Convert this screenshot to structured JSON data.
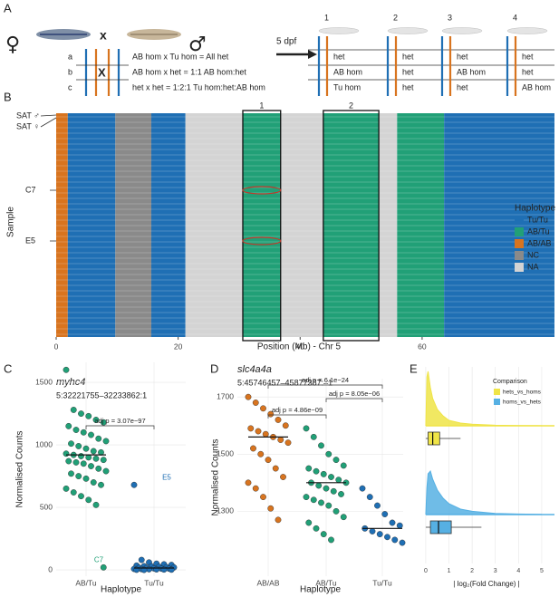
{
  "panel_a": {
    "label": "A",
    "female": "♀",
    "male": "♂",
    "cross": "x",
    "crosses": [
      {
        "row": "a",
        "text": "AB hom x Tu hom = All het"
      },
      {
        "row": "b",
        "text": "AB hom x het = 1:1 AB hom:het"
      },
      {
        "row": "c",
        "text": "het x het = 1:2:1 Tu hom:het:AB hom"
      }
    ],
    "cross_mark": "X",
    "arrow_label": "5 dpf",
    "columns": [
      "1",
      "2",
      "3",
      "4"
    ],
    "genotypes": [
      [
        "het",
        "het",
        "het",
        "het"
      ],
      [
        "AB hom",
        "het",
        "AB hom",
        "het"
      ],
      [
        "Tu hom",
        "het",
        "het",
        "AB hom"
      ]
    ]
  },
  "chart_data": [
    {
      "type": "heatmap",
      "panel_label": "B",
      "xlabel": "Position (Mb) - Chr 5",
      "ylabel": "Sample",
      "xlim": [
        0,
        81.7
      ],
      "xticks": [
        0,
        20,
        40,
        60
      ],
      "row_labels": [
        "SAT ♂",
        "SAT ♀",
        "C7",
        "E5"
      ],
      "segments": [
        {
          "start": 0,
          "end": 1.9,
          "haplotype": "AB/AB"
        },
        {
          "start": 1.9,
          "end": 9.7,
          "haplotype": "Tu/Tu"
        },
        {
          "start": 9.7,
          "end": 15.6,
          "haplotype": "NC"
        },
        {
          "start": 15.6,
          "end": 21.2,
          "haplotype": "Tu/Tu"
        },
        {
          "start": 21.2,
          "end": 30.6,
          "haplotype": "NA"
        },
        {
          "start": 30.6,
          "end": 36.8,
          "haplotype": "AB/Tu"
        },
        {
          "start": 36.8,
          "end": 43.8,
          "haplotype": "NA"
        },
        {
          "start": 43.8,
          "end": 52.9,
          "haplotype": "AB/Tu"
        },
        {
          "start": 52.9,
          "end": 55.9,
          "haplotype": "NA"
        },
        {
          "start": 55.9,
          "end": 63.6,
          "haplotype": "AB/Tu"
        },
        {
          "start": 63.6,
          "end": 81.7,
          "haplotype": "Tu/Tu"
        }
      ],
      "regions": [
        {
          "label": "1",
          "start": 30.6,
          "end": 36.8
        },
        {
          "label": "2",
          "start": 43.8,
          "end": 52.9
        }
      ],
      "legend_title": "Haplotype",
      "legend": [
        {
          "name": "Tu/Tu",
          "color": "#1f6fb4"
        },
        {
          "name": "AB/Tu",
          "color": "#21a077"
        },
        {
          "name": "AB/AB",
          "color": "#d8741f"
        },
        {
          "name": "NC",
          "color": "#8a8a8a"
        },
        {
          "name": "NA",
          "color": "#d4d4d4"
        }
      ]
    },
    {
      "type": "strip",
      "panel_label": "C",
      "title": "myhc4",
      "subtitle": "5:32221755–32233862:1",
      "xlabel": "Haplotype",
      "ylabel": "Normalised Counts",
      "categories": [
        "AB/Tu",
        "Tu/Tu"
      ],
      "colors": [
        "#21a077",
        "#1f6fb4"
      ],
      "ylim": [
        -50,
        1660
      ],
      "yticks": [
        0,
        500,
        1000,
        1500
      ],
      "values": [
        [
          1600,
          1280,
          1250,
          1230,
          1200,
          1180,
          1150,
          1120,
          1100,
          1080,
          1050,
          1030,
          1010,
          990,
          970,
          950,
          940,
          930,
          920,
          910,
          900,
          890,
          880,
          870,
          860,
          850,
          830,
          810,
          790,
          770,
          750,
          730,
          700,
          680,
          650,
          620,
          590,
          560,
          520,
          20
        ],
        [
          680,
          80,
          60,
          50,
          45,
          40,
          35,
          30,
          28,
          25,
          22,
          20,
          18,
          15,
          12,
          10,
          10,
          8,
          6,
          5,
          4,
          3,
          2,
          1,
          0
        ]
      ],
      "medians": [
        920,
        15
      ],
      "comparisons": [
        {
          "label": "adj p = 3.07e−97",
          "between": [
            "AB/Tu",
            "Tu/Tu"
          ]
        }
      ],
      "point_labels": [
        {
          "label": "C7",
          "category": "AB/Tu",
          "value": 20
        },
        {
          "label": "E5",
          "category": "Tu/Tu",
          "value": 680
        }
      ]
    },
    {
      "type": "strip",
      "panel_label": "D",
      "title": "slc4a4a",
      "subtitle": "5:45746457–45877387:–1",
      "xlabel": "Haplotype",
      "ylabel": "Normalised Counts",
      "categories": [
        "AB/AB",
        "AB/Tu",
        "Tu/Tu"
      ],
      "colors": [
        "#d8741f",
        "#21a077",
        "#1f6fb4"
      ],
      "ylim": [
        1073,
        1764
      ],
      "yticks": [
        1300,
        1500,
        1700
      ],
      "values": [
        [
          1700,
          1680,
          1660,
          1640,
          1620,
          1600,
          1590,
          1580,
          1570,
          1560,
          1550,
          1540,
          1520,
          1500,
          1480,
          1450,
          1420,
          1400,
          1380,
          1350,
          1310,
          1270
        ],
        [
          1590,
          1560,
          1530,
          1500,
          1480,
          1460,
          1450,
          1440,
          1430,
          1420,
          1410,
          1400,
          1400,
          1390,
          1380,
          1370,
          1360,
          1350,
          1340,
          1330,
          1320,
          1300,
          1280,
          1260,
          1240,
          1220,
          1200
        ],
        [
          1380,
          1350,
          1320,
          1290,
          1260,
          1250,
          1240,
          1230,
          1220,
          1210,
          1200,
          1190
        ]
      ],
      "medians": [
        1560,
        1400,
        1240
      ],
      "comparisons": [
        {
          "label": "adj p = 6.1e−24",
          "between": [
            "AB/AB",
            "Tu/Tu"
          ]
        },
        {
          "label": "adj p = 8.05e−06",
          "between": [
            "AB/Tu",
            "Tu/Tu"
          ]
        },
        {
          "label": "adj p = 4.86e−09",
          "between": [
            "AB/AB",
            "AB/Tu"
          ]
        }
      ],
      "point_labels": []
    },
    {
      "type": "raincloud",
      "panel_label": "E",
      "xlabel": "| log₂(Fold Change) |",
      "xlim": [
        -0.31,
        5.55
      ],
      "xticks": [
        0,
        1,
        2,
        3,
        4,
        5
      ],
      "legend_title": "Comparison",
      "x": [
        0,
        0.05,
        0.1,
        0.2,
        0.3,
        0.5,
        0.75,
        1,
        1.5,
        2,
        3,
        4,
        5
      ],
      "series": [
        {
          "name": "hets_vs_homs",
          "color": "#efe447",
          "density": [
            0,
            0.9,
            1,
            0.7,
            0.5,
            0.3,
            0.18,
            0.1,
            0.05,
            0.03,
            0.01,
            0.005,
            0.002
          ],
          "box": {
            "whisker_low": 0,
            "q1": 0.1,
            "median": 0.3,
            "q3": 0.6,
            "whisker_high": 1.5
          }
        },
        {
          "name": "homs_vs_hets",
          "color": "#56b0e3",
          "density": [
            0,
            0.5,
            0.75,
            0.8,
            0.65,
            0.45,
            0.3,
            0.2,
            0.1,
            0.06,
            0.02,
            0.01,
            0.005
          ],
          "box": {
            "whisker_low": 0,
            "q1": 0.2,
            "median": 0.55,
            "q3": 1.1,
            "whisker_high": 2.4
          }
        }
      ]
    }
  ]
}
